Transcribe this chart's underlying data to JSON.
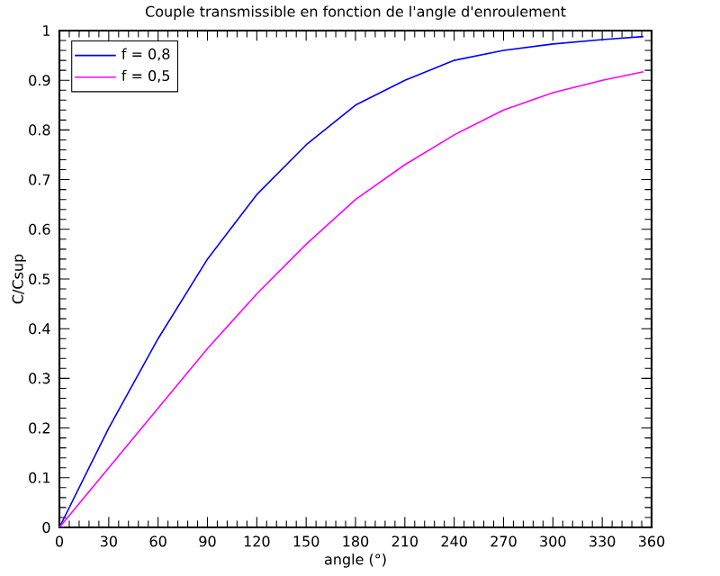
{
  "chart_data": {
    "type": "line",
    "title": "Couple transmissible en fonction de l'angle d'enroulement",
    "xlabel": "angle (°)",
    "ylabel": "C/Csup",
    "x": [
      0,
      30,
      60,
      90,
      120,
      150,
      180,
      210,
      240,
      270,
      300,
      330,
      355
    ],
    "series": [
      {
        "name": "f = 0,8",
        "color": "#0000ff",
        "values": [
          0,
          0.2,
          0.38,
          0.54,
          0.67,
          0.77,
          0.85,
          0.9,
          0.94,
          0.96,
          0.973,
          0.982,
          0.988
        ]
      },
      {
        "name": "f = 0,5",
        "color": "#ff00ff",
        "values": [
          0,
          0.12,
          0.24,
          0.36,
          0.47,
          0.57,
          0.66,
          0.73,
          0.79,
          0.84,
          0.875,
          0.9,
          0.917
        ]
      }
    ],
    "xlim": [
      0,
      360
    ],
    "xticks": [
      0,
      30,
      60,
      90,
      120,
      150,
      180,
      210,
      240,
      270,
      300,
      330,
      360
    ],
    "ylim": [
      0,
      1
    ],
    "yticks": [
      0,
      0.1,
      0.2,
      0.3,
      0.4,
      0.5,
      0.6,
      0.7,
      0.8,
      0.9,
      1
    ],
    "grid": false,
    "legend": "top left",
    "marker": "none",
    "line_style": "solid"
  }
}
